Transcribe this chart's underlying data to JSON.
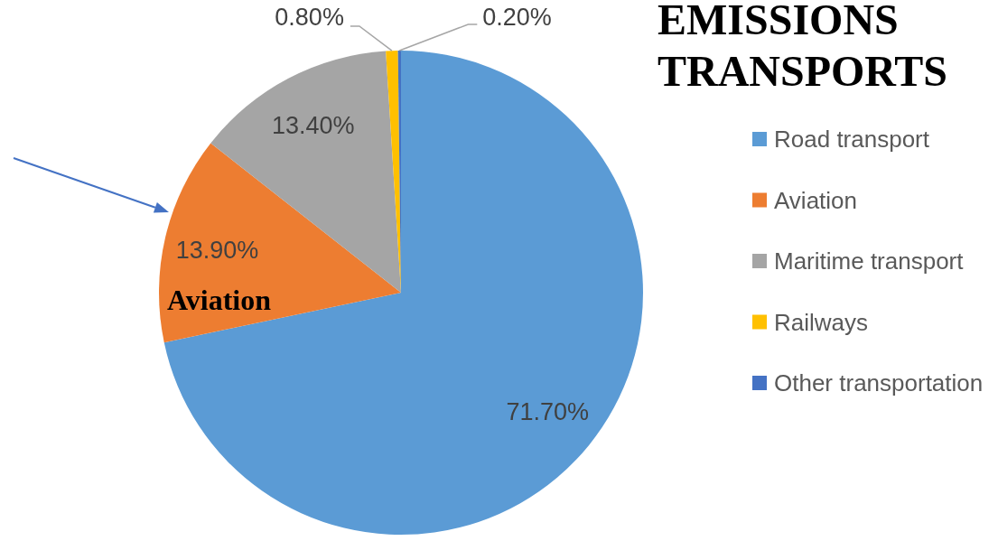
{
  "chart_data": {
    "type": "pie",
    "title": "EMISSIONS TRANSPORTS",
    "categories": [
      "Road transport",
      "Aviation",
      "Maritime transport",
      "Railways",
      "Other transportation"
    ],
    "values": [
      71.7,
      13.9,
      13.4,
      0.8,
      0.2
    ],
    "colors": [
      "#5b9bd5",
      "#ed7d31",
      "#a5a5a5",
      "#ffc000",
      "#4472c4"
    ],
    "value_labels": [
      "71.70%",
      "13.90%",
      "13.40%",
      "0.80%",
      "0.20%"
    ],
    "legend": "right",
    "annotations": [
      "Aviation"
    ]
  }
}
